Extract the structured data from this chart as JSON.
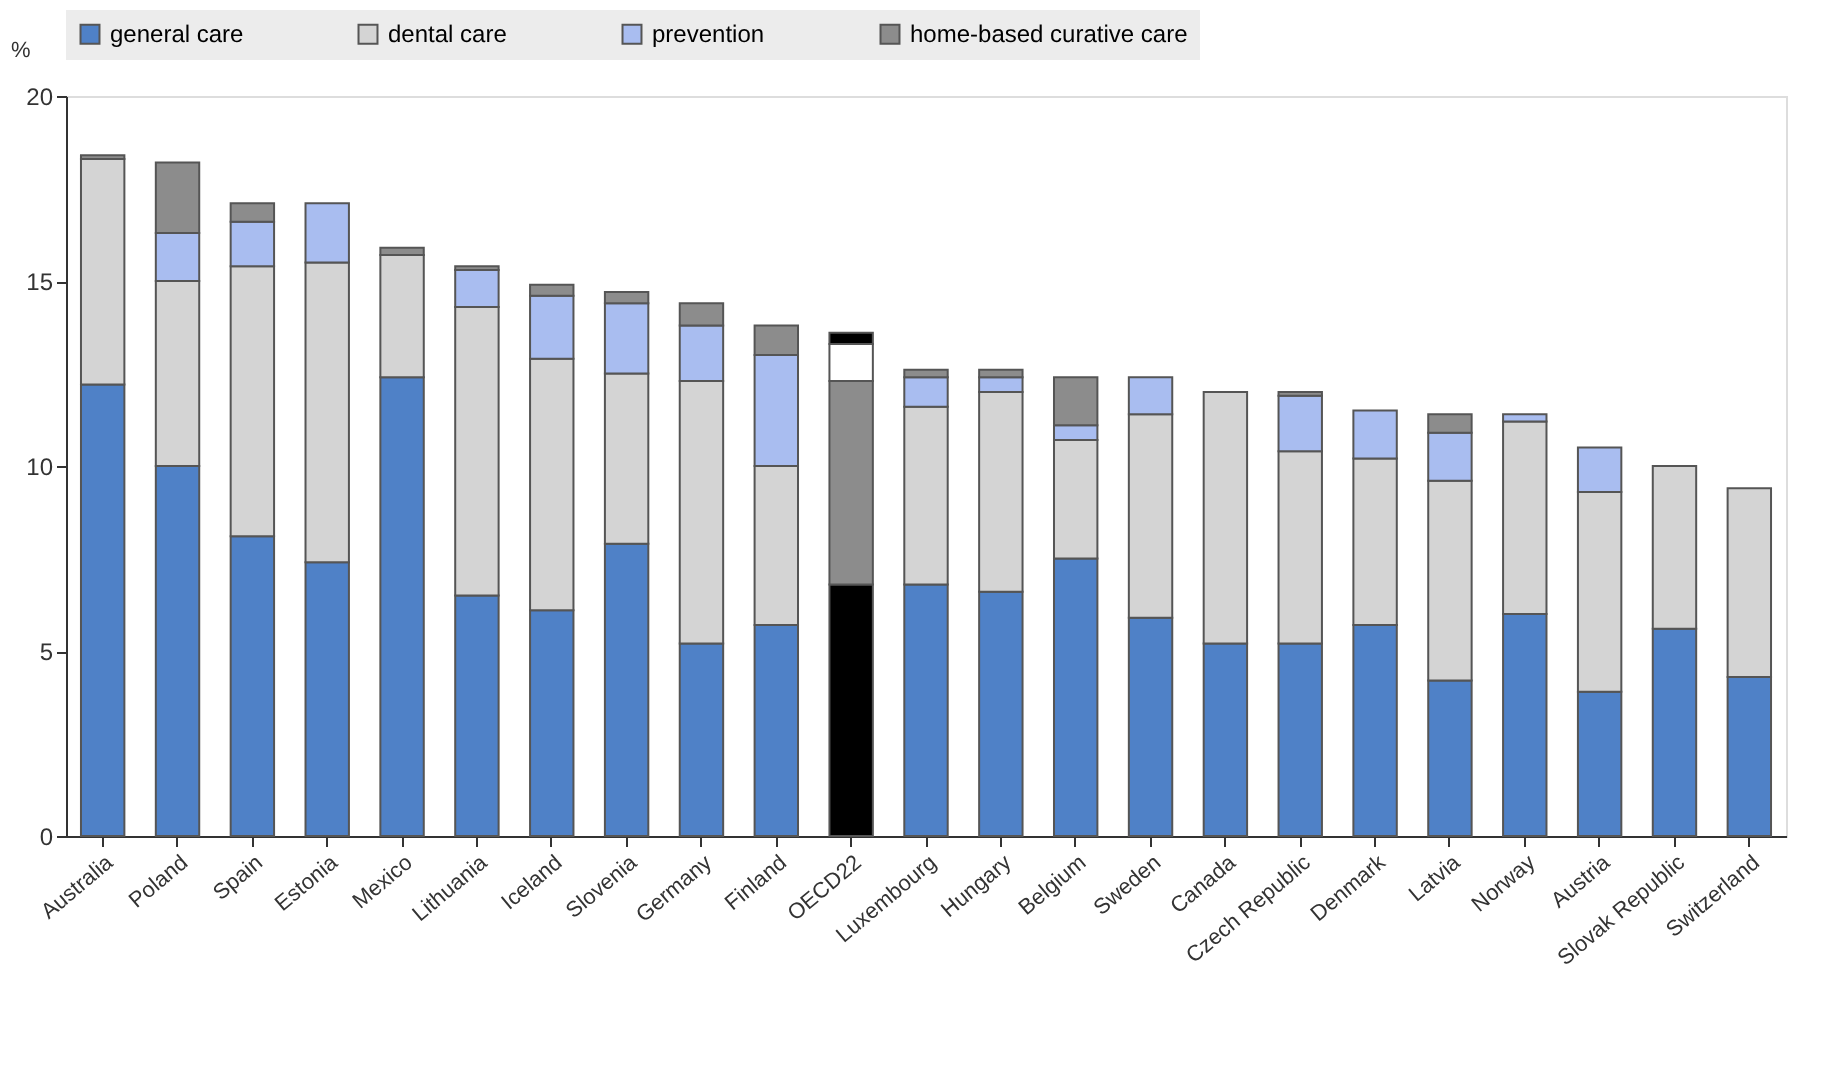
{
  "chart_data": {
    "type": "bar",
    "stacked": true,
    "ylabel": "%",
    "ylim": [
      0,
      20
    ],
    "yticks": [
      0,
      5,
      10,
      15,
      20
    ],
    "grid": false,
    "legend": "top",
    "categories": [
      "Australia",
      "Poland",
      "Spain",
      "Estonia",
      "Mexico",
      "Lithuania",
      "Iceland",
      "Slovenia",
      "Germany",
      "Finland",
      "OECD22",
      "Luxembourg",
      "Hungary",
      "Belgium",
      "Sweden",
      "Canada",
      "Czech Republic",
      "Denmark",
      "Latvia",
      "Norway",
      "Austria",
      "Slovak Republic",
      "Switzerland"
    ],
    "series": [
      {
        "name": "general care",
        "color": "#4f81c7",
        "colors": [
          "#4f81c7",
          "#4f81c7",
          "#4f81c7",
          "#4f81c7",
          "#4f81c7",
          "#4f81c7",
          "#4f81c7",
          "#4f81c7",
          "#4f81c7",
          "#4f81c7",
          "#000000",
          "#4f81c7",
          "#4f81c7",
          "#4f81c7",
          "#4f81c7",
          "#4f81c7",
          "#4f81c7",
          "#4f81c7",
          "#4f81c7",
          "#4f81c7",
          "#4f81c7",
          "#4f81c7",
          "#4f81c7"
        ],
        "values": [
          12.2,
          10.0,
          8.1,
          7.4,
          12.4,
          6.5,
          6.1,
          7.9,
          5.2,
          5.7,
          6.8,
          6.8,
          6.6,
          7.5,
          5.9,
          5.2,
          5.2,
          5.7,
          4.2,
          6.0,
          3.9,
          5.6,
          4.3
        ]
      },
      {
        "name": "dental care",
        "color": "#d4d4d4",
        "colors": [
          "#d4d4d4",
          "#d4d4d4",
          "#d4d4d4",
          "#d4d4d4",
          "#d4d4d4",
          "#d4d4d4",
          "#d4d4d4",
          "#d4d4d4",
          "#d4d4d4",
          "#d4d4d4",
          "#8c8c8c",
          "#d4d4d4",
          "#d4d4d4",
          "#d4d4d4",
          "#d4d4d4",
          "#d4d4d4",
          "#d4d4d4",
          "#d4d4d4",
          "#d4d4d4",
          "#d4d4d4",
          "#d4d4d4",
          "#d4d4d4",
          "#d4d4d4"
        ],
        "values": [
          6.1,
          5.0,
          7.3,
          8.1,
          3.3,
          7.8,
          6.8,
          4.6,
          7.1,
          4.3,
          5.5,
          4.8,
          5.4,
          3.2,
          5.5,
          6.8,
          5.2,
          4.5,
          5.4,
          5.2,
          5.4,
          4.4,
          5.1
        ]
      },
      {
        "name": "prevention",
        "color": "#a9bdf0",
        "colors": [
          "#a9bdf0",
          "#a9bdf0",
          "#a9bdf0",
          "#a9bdf0",
          "#a9bdf0",
          "#a9bdf0",
          "#a9bdf0",
          "#a9bdf0",
          "#a9bdf0",
          "#a9bdf0",
          "#ffffff",
          "#a9bdf0",
          "#a9bdf0",
          "#a9bdf0",
          "#a9bdf0",
          "#a9bdf0",
          "#a9bdf0",
          "#a9bdf0",
          "#a9bdf0",
          "#a9bdf0",
          "#a9bdf0",
          "#a9bdf0",
          "#a9bdf0"
        ],
        "values": [
          null,
          1.3,
          1.2,
          1.6,
          null,
          1.0,
          1.7,
          1.9,
          1.5,
          3.0,
          1.0,
          0.8,
          0.4,
          0.4,
          1.0,
          null,
          1.5,
          1.3,
          1.3,
          0.2,
          1.2,
          null,
          null
        ]
      },
      {
        "name": "home-based curative care",
        "color": "#8c8c8c",
        "colors": [
          "#8c8c8c",
          "#8c8c8c",
          "#8c8c8c",
          "#8c8c8c",
          "#8c8c8c",
          "#8c8c8c",
          "#8c8c8c",
          "#8c8c8c",
          "#8c8c8c",
          "#8c8c8c",
          "#000000",
          "#8c8c8c",
          "#8c8c8c",
          "#8c8c8c",
          "#8c8c8c",
          "#8c8c8c",
          "#8c8c8c",
          "#8c8c8c",
          "#8c8c8c",
          "#8c8c8c",
          "#8c8c8c",
          "#8c8c8c",
          "#8c8c8c"
        ],
        "values": [
          0.1,
          1.9,
          0.5,
          null,
          0.2,
          0.1,
          0.3,
          0.3,
          0.6,
          0.8,
          0.3,
          0.2,
          0.2,
          1.3,
          null,
          null,
          0.1,
          null,
          0.5,
          null,
          null,
          null,
          null
        ]
      }
    ]
  }
}
